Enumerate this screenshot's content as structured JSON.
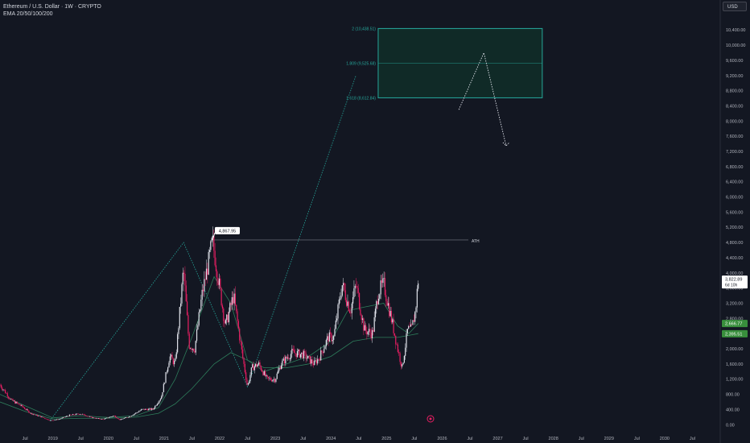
{
  "header": {
    "symbol_line": "Ethereum / U.S. Dollar · 1W · CRYPTO",
    "indicator_line": "EMA 20/50/100/200",
    "currency": "USD"
  },
  "colors": {
    "background": "#131722",
    "up_candle": "#e0e3eb",
    "down_candle": "#e91e63",
    "ema": "#2e7d5b",
    "projection": "#26a69a",
    "target_box_fill": "#102a27",
    "target_box_stroke": "#26a69a",
    "current_price_bg": "#ffffff",
    "ema_label_bg": "#388e3c",
    "text": "#d1d4dc",
    "axis_text": "#b2b5be"
  },
  "chart_data": {
    "type": "candlestick",
    "symbol": "ETHUSD",
    "interval": "1W",
    "x_tick_labels": [
      "Jul",
      "2019",
      "Jul",
      "2020",
      "Jul",
      "2021",
      "Jul",
      "2022",
      "Jul",
      "2023",
      "Jul",
      "2024",
      "Jul",
      "2025",
      "Jul",
      "2026",
      "Jul",
      "2027",
      "Jul",
      "2028",
      "Jul",
      "2029",
      "Jul",
      "2030",
      "Jul"
    ],
    "x_tick_dates": [
      2018.5,
      2019.0,
      2019.5,
      2020.0,
      2020.5,
      2021.0,
      2021.5,
      2022.0,
      2022.5,
      2023.0,
      2023.5,
      2024.0,
      2024.5,
      2025.0,
      2025.5,
      2026.0,
      2026.5,
      2027.0,
      2027.5,
      2028.0,
      2028.5,
      2029.0,
      2029.5,
      2030.0,
      2030.5
    ],
    "xlim": [
      2018.05,
      2031.0
    ],
    "y_tick_labels": [
      "0.00",
      "400.00",
      "800.00",
      "1,200.00",
      "1,600.00",
      "2,000.00",
      "2,400.00",
      "2,800.00",
      "3,200.00",
      "3,600.00",
      "4,000.00",
      "4,400.00",
      "4,800.00",
      "5,200.00",
      "5,600.00",
      "6,000.00",
      "6,400.00",
      "6,800.00",
      "7,200.00",
      "7,600.00",
      "8,000.00",
      "8,400.00",
      "8,800.00",
      "9,200.00",
      "9,600.00",
      "10,000.00",
      "10,400.00"
    ],
    "y_tick_values": [
      0,
      400,
      800,
      1200,
      1600,
      2000,
      2400,
      2800,
      3200,
      3600,
      4000,
      4400,
      4800,
      5200,
      5600,
      6000,
      6400,
      6800,
      7200,
      7600,
      8000,
      8400,
      8800,
      9200,
      9600,
      10000,
      10400
    ],
    "ylim": [
      -100,
      10850
    ],
    "price_path": [
      [
        2018.05,
        1050
      ],
      [
        2018.25,
        650
      ],
      [
        2018.45,
        480
      ],
      [
        2018.6,
        300
      ],
      [
        2018.8,
        200
      ],
      [
        2018.95,
        110
      ],
      [
        2019.1,
        140
      ],
      [
        2019.3,
        250
      ],
      [
        2019.5,
        290
      ],
      [
        2019.7,
        190
      ],
      [
        2019.9,
        140
      ],
      [
        2020.1,
        240
      ],
      [
        2020.2,
        130
      ],
      [
        2020.4,
        230
      ],
      [
        2020.6,
        400
      ],
      [
        2020.8,
        410
      ],
      [
        2020.95,
        730
      ],
      [
        2021.1,
        1800
      ],
      [
        2021.2,
        1600
      ],
      [
        2021.35,
        4100
      ],
      [
        2021.45,
        2100
      ],
      [
        2021.55,
        2000
      ],
      [
        2021.68,
        3400
      ],
      [
        2021.8,
        4300
      ],
      [
        2021.87,
        4850
      ],
      [
        2022.0,
        3600
      ],
      [
        2022.1,
        2600
      ],
      [
        2022.25,
        3400
      ],
      [
        2022.4,
        1900
      ],
      [
        2022.5,
        1000
      ],
      [
        2022.58,
        1500
      ],
      [
        2022.7,
        1600
      ],
      [
        2022.85,
        1200
      ],
      [
        2023.0,
        1200
      ],
      [
        2023.1,
        1600
      ],
      [
        2023.3,
        1900
      ],
      [
        2023.5,
        1850
      ],
      [
        2023.7,
        1600
      ],
      [
        2023.8,
        1800
      ],
      [
        2023.95,
        2300
      ],
      [
        2024.05,
        2300
      ],
      [
        2024.2,
        3700
      ],
      [
        2024.35,
        3000
      ],
      [
        2024.45,
        3700
      ],
      [
        2024.6,
        2500
      ],
      [
        2024.75,
        2400
      ],
      [
        2024.85,
        3500
      ],
      [
        2024.95,
        3700
      ],
      [
        2025.1,
        2700
      ],
      [
        2025.2,
        2000
      ],
      [
        2025.28,
        1500
      ],
      [
        2025.38,
        2500
      ],
      [
        2025.45,
        2500
      ],
      [
        2025.52,
        3000
      ],
      [
        2025.57,
        3823
      ]
    ],
    "ema_fast": [
      [
        2018.05,
        800
      ],
      [
        2018.5,
        500
      ],
      [
        2019.0,
        180
      ],
      [
        2019.5,
        240
      ],
      [
        2020.0,
        190
      ],
      [
        2020.5,
        240
      ],
      [
        2020.9,
        450
      ],
      [
        2021.2,
        1200
      ],
      [
        2021.5,
        2300
      ],
      [
        2021.9,
        3900
      ],
      [
        2022.2,
        3200
      ],
      [
        2022.5,
        1700
      ],
      [
        2022.8,
        1400
      ],
      [
        2023.2,
        1600
      ],
      [
        2023.6,
        1800
      ],
      [
        2024.0,
        2200
      ],
      [
        2024.3,
        3000
      ],
      [
        2024.6,
        3100
      ],
      [
        2024.95,
        3200
      ],
      [
        2025.2,
        2600
      ],
      [
        2025.4,
        2400
      ],
      [
        2025.57,
        2666
      ]
    ],
    "ema_slow": [
      [
        2018.05,
        600
      ],
      [
        2018.5,
        350
      ],
      [
        2019.0,
        150
      ],
      [
        2019.5,
        170
      ],
      [
        2020.0,
        170
      ],
      [
        2020.5,
        200
      ],
      [
        2020.9,
        300
      ],
      [
        2021.2,
        550
      ],
      [
        2021.5,
        950
      ],
      [
        2021.9,
        1600
      ],
      [
        2022.2,
        1900
      ],
      [
        2022.5,
        1700
      ],
      [
        2022.8,
        1500
      ],
      [
        2023.2,
        1500
      ],
      [
        2023.6,
        1600
      ],
      [
        2024.0,
        1800
      ],
      [
        2024.4,
        2200
      ],
      [
        2024.8,
        2300
      ],
      [
        2025.2,
        2300
      ],
      [
        2025.57,
        2400
      ]
    ],
    "annotations": {
      "ath_label": "4,867.95",
      "ath_value": 4867.95,
      "ath_date": 2021.87,
      "ath_line_label": "ATH",
      "fib_levels": [
        {
          "label": "2 (10,438.51)",
          "value": 10438.51
        },
        {
          "label": "1.809 (9,525.68)",
          "value": 9525.68
        },
        {
          "label": "1.618 (8,612.84)",
          "value": 8612.84
        }
      ],
      "target_box": {
        "x_start": 2024.85,
        "x_end": 2027.8,
        "y_low": 8612.84,
        "y_high": 10438.51
      },
      "current_price": {
        "value": "3,822.89",
        "countdown": "6d 10h"
      },
      "ema_labels": [
        "2,666.77",
        "2,395.51"
      ],
      "projection_path": [
        [
          2018.95,
          110
        ],
        [
          2021.35,
          4800
        ],
        [
          2022.5,
          1000
        ],
        [
          2024.45,
          9200
        ]
      ],
      "scenario_path": [
        [
          2026.3,
          8300
        ],
        [
          2026.75,
          9800
        ],
        [
          2027.15,
          7350
        ]
      ]
    }
  }
}
